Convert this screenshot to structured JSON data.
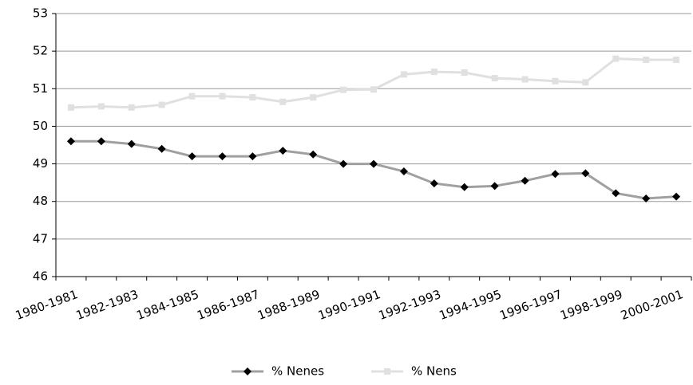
{
  "chart_data": {
    "type": "line",
    "categories": [
      "1980-1981",
      null,
      "1982-1983",
      null,
      "1984-1985",
      null,
      "1986-1987",
      null,
      "1988-1989",
      null,
      "1990-1991",
      null,
      "1992-1993",
      null,
      "1994-1995",
      null,
      "1996-1997",
      null,
      "1998-1999",
      null,
      "2000-2001"
    ],
    "series": [
      {
        "name": "% Nenes",
        "color": "#000000",
        "line_color": "#a0a0a0",
        "marker": "diamond",
        "values": [
          49.6,
          49.6,
          49.53,
          49.4,
          49.2,
          49.2,
          49.2,
          49.35,
          49.25,
          49.0,
          49.0,
          48.8,
          48.48,
          48.38,
          48.41,
          48.55,
          48.73,
          48.75,
          48.22,
          48.08,
          48.13
        ]
      },
      {
        "name": "% Nens",
        "color": "#e0e0e0",
        "line_color": "#e0e0e0",
        "marker": "square",
        "values": [
          50.5,
          50.53,
          50.5,
          50.57,
          50.8,
          50.8,
          50.77,
          50.65,
          50.77,
          50.97,
          50.98,
          51.38,
          51.45,
          51.43,
          51.28,
          51.25,
          51.2,
          51.17,
          51.8,
          51.77,
          51.77
        ]
      }
    ],
    "ylim": [
      46,
      53
    ],
    "yticks": [
      46,
      47,
      48,
      49,
      50,
      51,
      52,
      53
    ],
    "grid": true,
    "legend": "bottom"
  }
}
